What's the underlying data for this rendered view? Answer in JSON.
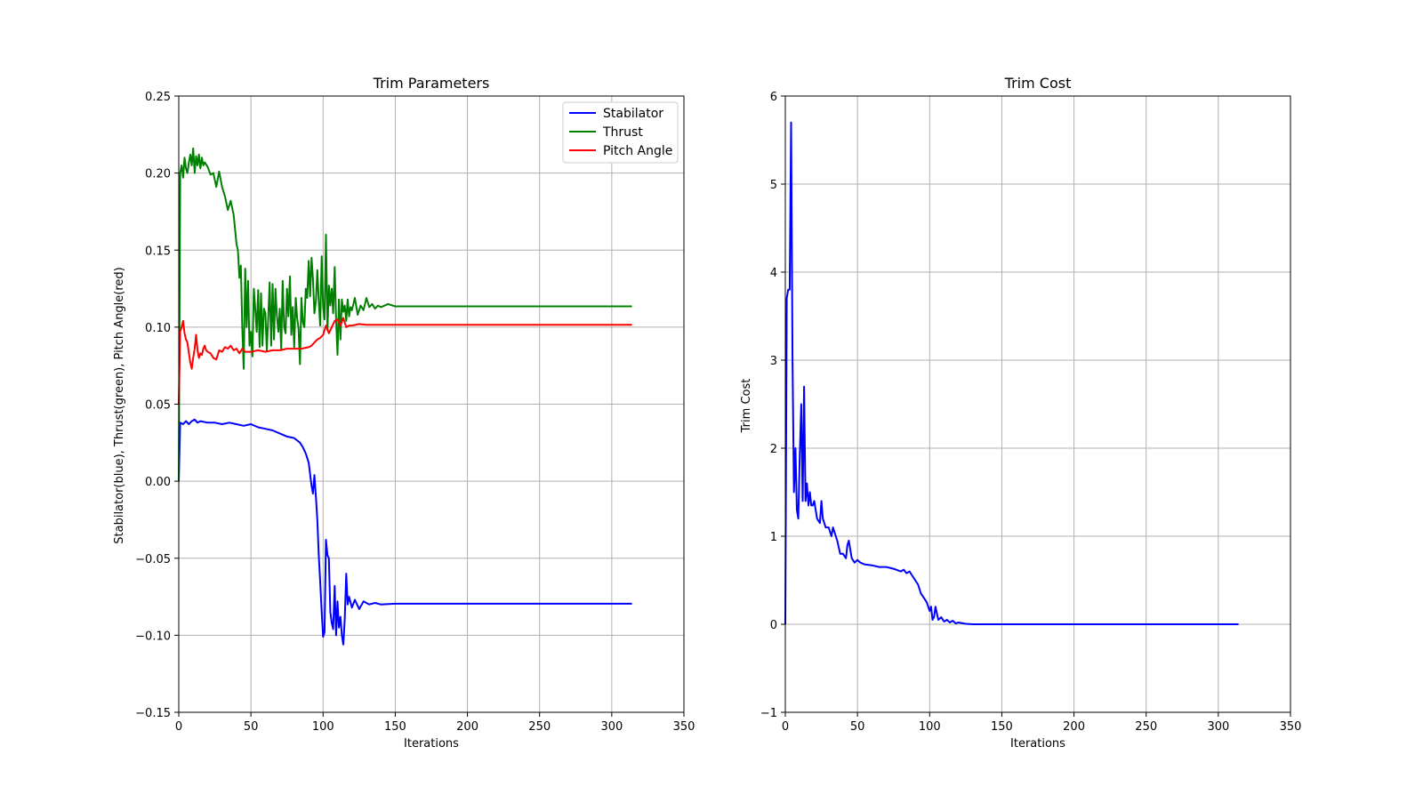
{
  "chart_data": [
    {
      "type": "line",
      "title": "Trim Parameters",
      "xlabel": "Iterations",
      "ylabel": "Stabilator(blue), Thrust(green), Pitch Angle(red)",
      "xlim": [
        0,
        350
      ],
      "ylim": [
        -0.15,
        0.25
      ],
      "xticks": [
        0,
        50,
        100,
        150,
        200,
        250,
        300,
        350
      ],
      "xtick_labels": [
        "0",
        "50",
        "100",
        "150",
        "200",
        "250",
        "300",
        "350"
      ],
      "yticks": [
        -0.15,
        -0.1,
        -0.05,
        0.0,
        0.05,
        0.1,
        0.15,
        0.2,
        0.25
      ],
      "ytick_labels": [
        "−0.15",
        "−0.10",
        "−0.05",
        "0.00",
        "0.05",
        "0.10",
        "0.15",
        "0.20",
        "0.25"
      ],
      "grid": true,
      "legend": "top-right",
      "series": [
        {
          "name": "Stabilator",
          "color": "#0000ff",
          "x": [
            0,
            1,
            3,
            5,
            7,
            9,
            11,
            13,
            15,
            20,
            25,
            30,
            35,
            40,
            45,
            50,
            55,
            60,
            65,
            70,
            75,
            80,
            84,
            86,
            88,
            90,
            92,
            93,
            94,
            95,
            96,
            97,
            98,
            99,
            100,
            101,
            102,
            103,
            104,
            105,
            106,
            107,
            108,
            109,
            110,
            111,
            112,
            113,
            114,
            115,
            116,
            117,
            118,
            120,
            122,
            125,
            128,
            132,
            136,
            140,
            150,
            200,
            250,
            314
          ],
          "y": [
            0.0,
            0.038,
            0.037,
            0.039,
            0.037,
            0.039,
            0.04,
            0.038,
            0.039,
            0.038,
            0.038,
            0.037,
            0.038,
            0.037,
            0.036,
            0.037,
            0.035,
            0.034,
            0.033,
            0.031,
            0.029,
            0.028,
            0.025,
            0.022,
            0.018,
            0.012,
            -0.003,
            -0.008,
            0.004,
            -0.01,
            -0.025,
            -0.048,
            -0.065,
            -0.085,
            -0.101,
            -0.098,
            -0.038,
            -0.048,
            -0.05,
            -0.085,
            -0.092,
            -0.096,
            -0.068,
            -0.1,
            -0.078,
            -0.095,
            -0.088,
            -0.1,
            -0.106,
            -0.09,
            -0.06,
            -0.08,
            -0.075,
            -0.082,
            -0.077,
            -0.083,
            -0.078,
            -0.08,
            -0.079,
            -0.08,
            -0.0795,
            -0.0795,
            -0.0795,
            -0.0795
          ]
        },
        {
          "name": "Thrust",
          "color": "#008000",
          "x": [
            0,
            1,
            2,
            3,
            4,
            5,
            6,
            7,
            8,
            9,
            10,
            11,
            12,
            13,
            14,
            15,
            16,
            17,
            18,
            20,
            22,
            24,
            26,
            28,
            30,
            32,
            34,
            36,
            38,
            40,
            41,
            42,
            43,
            44,
            45,
            46,
            47,
            48,
            49,
            50,
            51,
            52,
            53,
            54,
            55,
            56,
            57,
            58,
            59,
            60,
            61,
            62,
            63,
            64,
            65,
            66,
            67,
            68,
            69,
            70,
            71,
            72,
            73,
            74,
            75,
            76,
            77,
            78,
            79,
            80,
            81,
            82,
            83,
            84,
            85,
            86,
            87,
            88,
            89,
            90,
            91,
            92,
            93,
            94,
            95,
            96,
            97,
            98,
            99,
            100,
            101,
            102,
            103,
            104,
            105,
            106,
            107,
            108,
            109,
            110,
            111,
            112,
            113,
            114,
            115,
            116,
            117,
            118,
            119,
            120,
            122,
            124,
            126,
            128,
            130,
            132,
            134,
            136,
            138,
            140,
            145,
            150,
            160,
            200,
            250,
            314
          ],
          "y": [
            0.0,
            0.2,
            0.205,
            0.197,
            0.21,
            0.203,
            0.2,
            0.207,
            0.212,
            0.205,
            0.216,
            0.2,
            0.211,
            0.205,
            0.212,
            0.203,
            0.21,
            0.205,
            0.207,
            0.204,
            0.199,
            0.2,
            0.191,
            0.201,
            0.191,
            0.185,
            0.176,
            0.182,
            0.173,
            0.154,
            0.15,
            0.132,
            0.14,
            0.1,
            0.073,
            0.138,
            0.1,
            0.13,
            0.088,
            0.097,
            0.081,
            0.125,
            0.112,
            0.097,
            0.124,
            0.087,
            0.122,
            0.088,
            0.112,
            0.109,
            0.085,
            0.106,
            0.129,
            0.088,
            0.128,
            0.092,
            0.125,
            0.107,
            0.097,
            0.112,
            0.085,
            0.13,
            0.1,
            0.096,
            0.125,
            0.107,
            0.133,
            0.095,
            0.113,
            0.087,
            0.119,
            0.106,
            0.099,
            0.076,
            0.119,
            0.103,
            0.1,
            0.125,
            0.119,
            0.143,
            0.12,
            0.145,
            0.131,
            0.109,
            0.117,
            0.137,
            0.117,
            0.101,
            0.146,
            0.113,
            0.105,
            0.16,
            0.098,
            0.127,
            0.114,
            0.125,
            0.109,
            0.139,
            0.105,
            0.082,
            0.118,
            0.092,
            0.118,
            0.11,
            0.114,
            0.104,
            0.118,
            0.107,
            0.113,
            0.111,
            0.119,
            0.108,
            0.114,
            0.111,
            0.119,
            0.113,
            0.115,
            0.112,
            0.114,
            0.113,
            0.115,
            0.1135,
            0.1135,
            0.1135,
            0.1135,
            0.1135
          ]
        },
        {
          "name": "Pitch Angle",
          "color": "#ff0000",
          "x": [
            0,
            1,
            2,
            3,
            4,
            5,
            6,
            7,
            8,
            9,
            10,
            11,
            12,
            13,
            14,
            15,
            16,
            17,
            18,
            19,
            20,
            22,
            24,
            26,
            28,
            30,
            32,
            34,
            36,
            38,
            40,
            42,
            44,
            46,
            50,
            55,
            60,
            65,
            70,
            75,
            80,
            85,
            90,
            92,
            94,
            96,
            98,
            100,
            102,
            104,
            106,
            108,
            110,
            112,
            114,
            116,
            118,
            120,
            125,
            130,
            140,
            150,
            200,
            250,
            314
          ],
          "y": [
            0.05,
            0.097,
            0.1,
            0.104,
            0.096,
            0.092,
            0.09,
            0.083,
            0.077,
            0.073,
            0.08,
            0.086,
            0.095,
            0.085,
            0.08,
            0.083,
            0.082,
            0.086,
            0.088,
            0.085,
            0.084,
            0.083,
            0.08,
            0.079,
            0.085,
            0.084,
            0.087,
            0.086,
            0.088,
            0.085,
            0.086,
            0.083,
            0.086,
            0.084,
            0.084,
            0.085,
            0.084,
            0.085,
            0.085,
            0.086,
            0.086,
            0.086,
            0.087,
            0.088,
            0.09,
            0.092,
            0.093,
            0.095,
            0.101,
            0.096,
            0.1,
            0.104,
            0.105,
            0.101,
            0.106,
            0.1,
            0.101,
            0.101,
            0.102,
            0.1015,
            0.1015,
            0.1015,
            0.1015,
            0.1015,
            0.1015
          ]
        }
      ]
    },
    {
      "type": "line",
      "title": "Trim Cost",
      "xlabel": "Iterations",
      "ylabel": "Trim Cost",
      "xlim": [
        0,
        350
      ],
      "ylim": [
        -1,
        6
      ],
      "xticks": [
        0,
        50,
        100,
        150,
        200,
        250,
        300,
        350
      ],
      "xtick_labels": [
        "0",
        "50",
        "100",
        "150",
        "200",
        "250",
        "300",
        "350"
      ],
      "yticks": [
        -1,
        0,
        1,
        2,
        3,
        4,
        5,
        6
      ],
      "ytick_labels": [
        "−1",
        "0",
        "1",
        "2",
        "3",
        "4",
        "5",
        "6"
      ],
      "grid": true,
      "series": [
        {
          "color": "#0000ff",
          "x": [
            0,
            1,
            2,
            3,
            4,
            5,
            6,
            7,
            8,
            9,
            10,
            11,
            12,
            13,
            14,
            15,
            16,
            17,
            18,
            19,
            20,
            22,
            24,
            25,
            26,
            28,
            30,
            32,
            33,
            34,
            36,
            38,
            40,
            42,
            43,
            44,
            46,
            48,
            50,
            52,
            55,
            60,
            65,
            70,
            75,
            80,
            82,
            84,
            86,
            88,
            90,
            92,
            94,
            96,
            98,
            100,
            101,
            102,
            103,
            104,
            106,
            108,
            110,
            112,
            114,
            116,
            118,
            120,
            125,
            130,
            140,
            150,
            200,
            250,
            314
          ],
          "y": [
            0.0,
            3.7,
            3.8,
            3.8,
            5.7,
            3.0,
            1.5,
            2.0,
            1.3,
            1.2,
            1.9,
            2.5,
            1.4,
            2.7,
            1.4,
            1.6,
            1.35,
            1.5,
            1.35,
            1.35,
            1.4,
            1.2,
            1.15,
            1.4,
            1.2,
            1.1,
            1.1,
            1.0,
            1.1,
            1.05,
            0.95,
            0.8,
            0.8,
            0.75,
            0.9,
            0.95,
            0.75,
            0.7,
            0.73,
            0.7,
            0.68,
            0.67,
            0.65,
            0.65,
            0.63,
            0.6,
            0.62,
            0.58,
            0.6,
            0.55,
            0.5,
            0.45,
            0.35,
            0.3,
            0.25,
            0.15,
            0.2,
            0.05,
            0.08,
            0.2,
            0.05,
            0.08,
            0.03,
            0.05,
            0.02,
            0.04,
            0.01,
            0.02,
            0.005,
            0.0,
            0.0,
            0.0,
            0.0,
            0.0,
            0.0
          ]
        }
      ]
    }
  ]
}
